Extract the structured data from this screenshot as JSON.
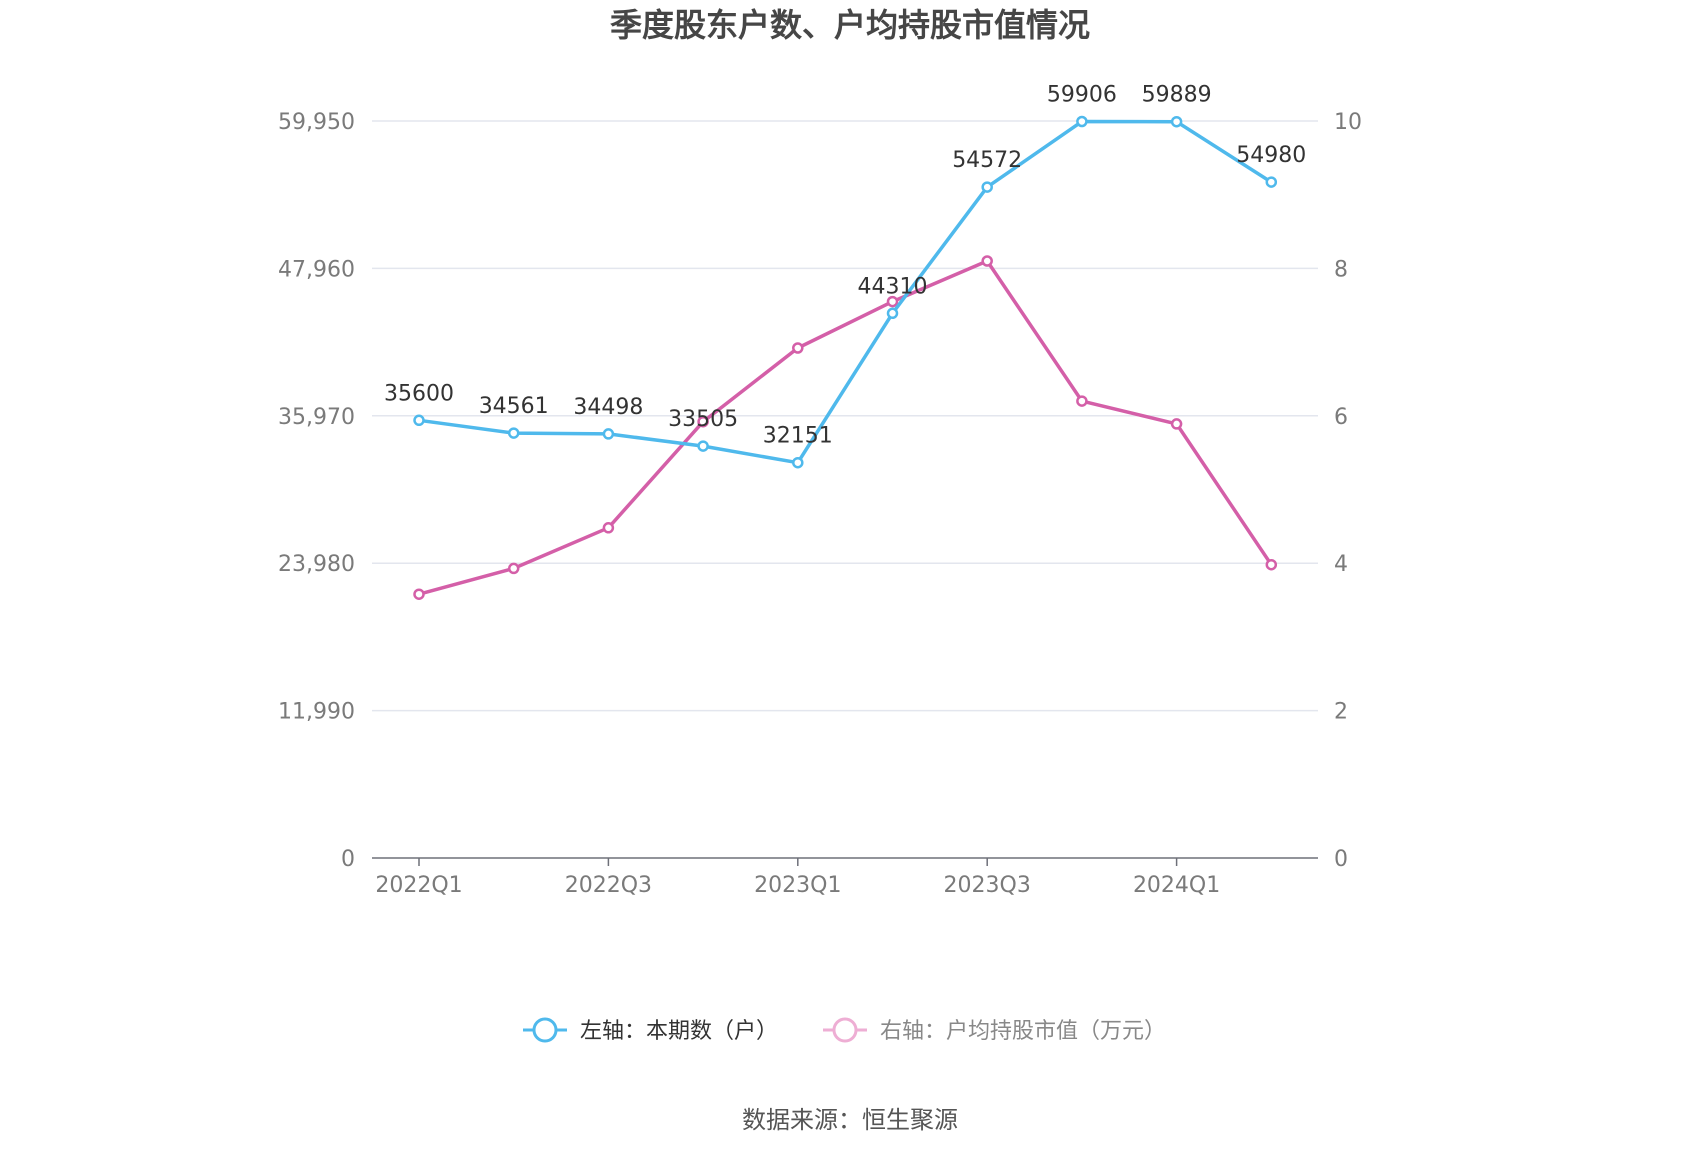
{
  "chart_data": {
    "type": "line",
    "title": "季度股东户数、户均持股市值情况",
    "categories": [
      "2022Q1",
      "2022Q2",
      "2022Q3",
      "2022Q4",
      "2023Q1",
      "2023Q2",
      "2023Q3",
      "2023Q4",
      "2024Q1",
      "2024Q2"
    ],
    "x_tick_labels": [
      "2022Q1",
      "2022Q3",
      "2023Q1",
      "2023Q3",
      "2024Q1"
    ],
    "left_axis": {
      "ylim": [
        0,
        59950
      ],
      "tick_labels": [
        "0",
        "11,990",
        "23,980",
        "35,970",
        "47,960",
        "59,950"
      ]
    },
    "right_axis": {
      "ylim": [
        0,
        10
      ],
      "tick_labels": [
        "0",
        "2",
        "4",
        "6",
        "8",
        "10"
      ]
    },
    "series": [
      {
        "name": "左轴：本期数（户）",
        "axis": "left",
        "color": "#4fb9ec",
        "values": [
          35600,
          34561,
          34498,
          33505,
          32151,
          44310,
          54572,
          59906,
          59889,
          54980
        ],
        "labels": [
          "35600",
          "34561",
          "34498",
          "33505",
          "32151",
          "44310",
          "54572",
          "59906",
          "59889",
          "54980"
        ]
      },
      {
        "name": "右轴：户均持股市值（万元）",
        "axis": "right",
        "color": "#d45fa8",
        "values": [
          3.58,
          3.93,
          4.48,
          5.92,
          6.92,
          7.55,
          8.1,
          6.2,
          5.89,
          3.98
        ]
      }
    ],
    "grid": true,
    "legend_position": "bottom-center"
  },
  "legend": {
    "series1": "左轴：本期数（户）",
    "series2": "右轴：户均持股市值（万元）"
  },
  "source": "数据来源：恒生聚源"
}
